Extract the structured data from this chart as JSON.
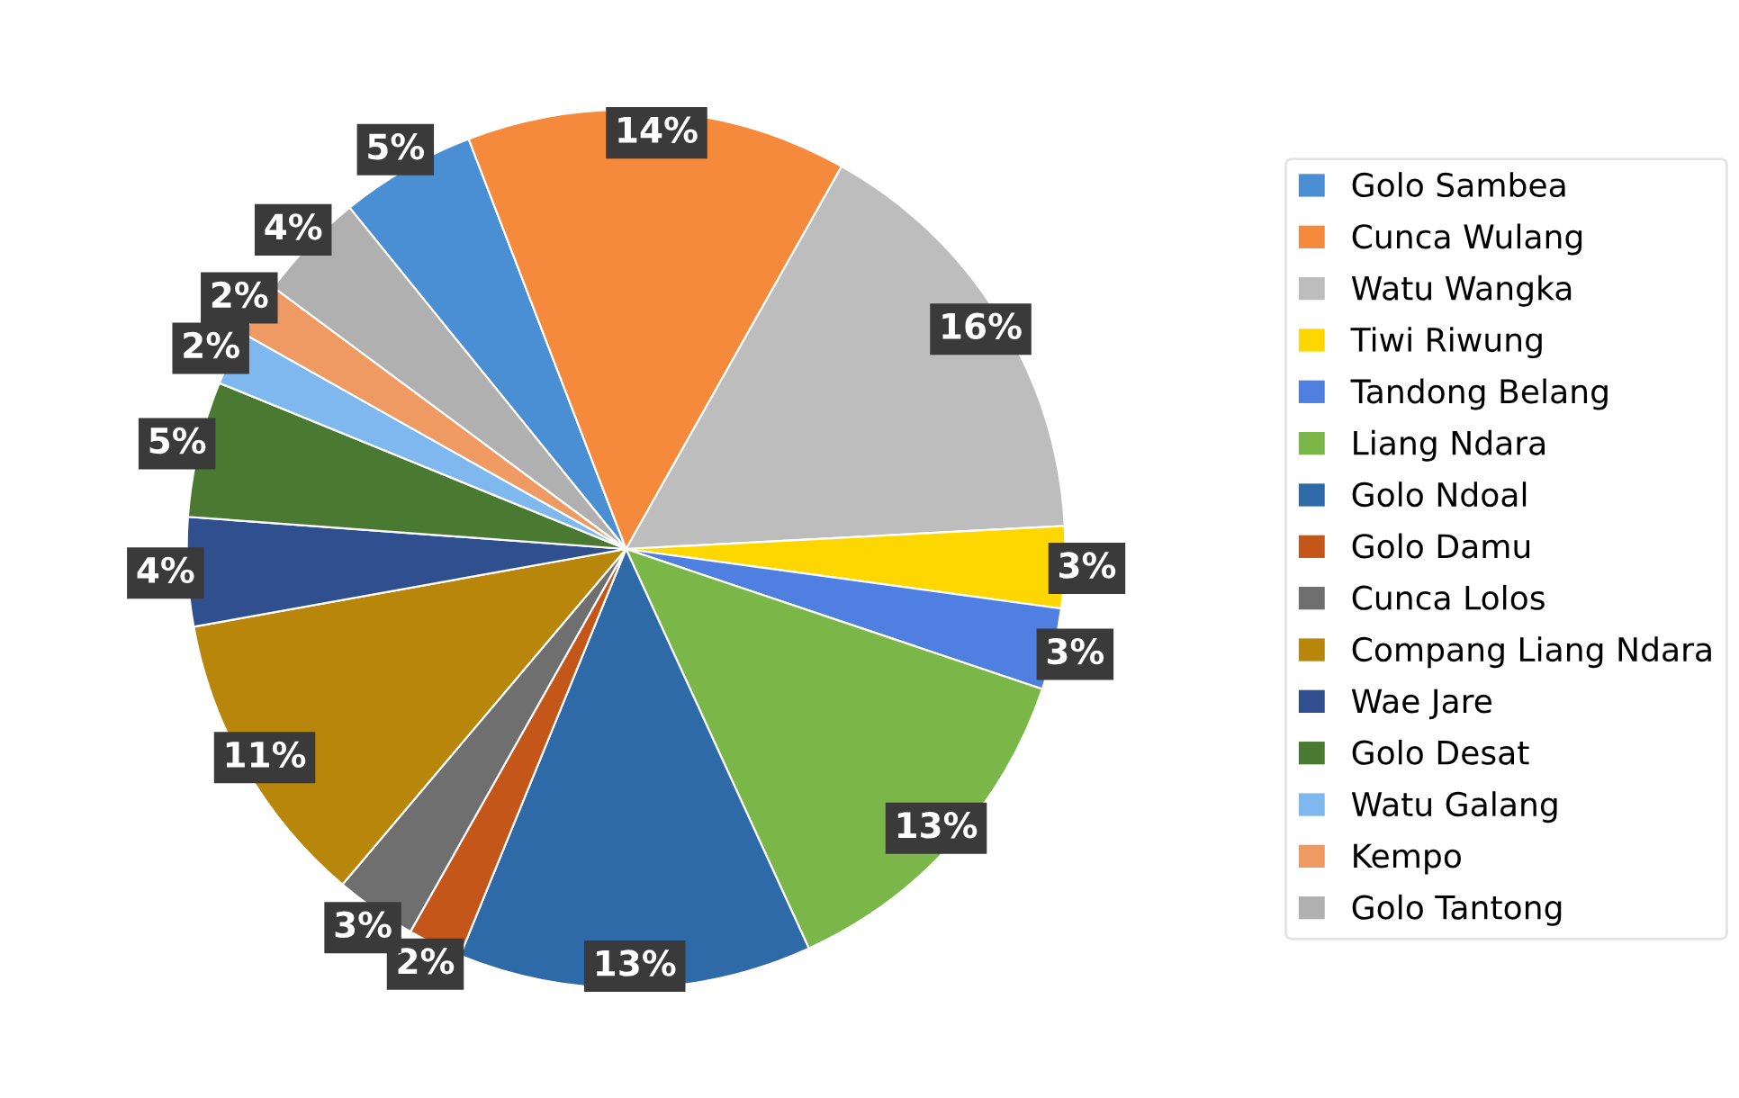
{
  "chart_data": {
    "type": "pie",
    "categories": [
      "Golo Sambea",
      "Cunca Wulang",
      "Watu Wangka",
      "Tiwi Riwung",
      "Tandong Belang",
      "Liang Ndara",
      "Golo Ndoal",
      "Golo Damu",
      "Cunca Lolos",
      "Compang Liang Ndara",
      "Wae Jare",
      "Golo Desat",
      "Watu Galang",
      "Kempo",
      "Golo Tantong"
    ],
    "values": [
      5,
      14,
      16,
      3,
      3,
      13,
      13,
      2,
      3,
      11,
      4,
      5,
      2,
      2,
      4
    ],
    "value_labels": [
      "5%",
      "14%",
      "16%",
      "3%",
      "3%",
      "13%",
      "13%",
      "2%",
      "3%",
      "11%",
      "4%",
      "5%",
      "2%",
      "2%",
      "4%"
    ],
    "colors": [
      "#4a8fd4",
      "#f58a3c",
      "#bdbdbd",
      "#ffd700",
      "#4f7fe0",
      "#7ab648",
      "#2e6aa8",
      "#c5561a",
      "#6f6f6f",
      "#b8860b",
      "#2f4f8f",
      "#4a7a32",
      "#7fb8ee",
      "#ee9a62",
      "#b0b0b0"
    ],
    "legend": "right"
  }
}
